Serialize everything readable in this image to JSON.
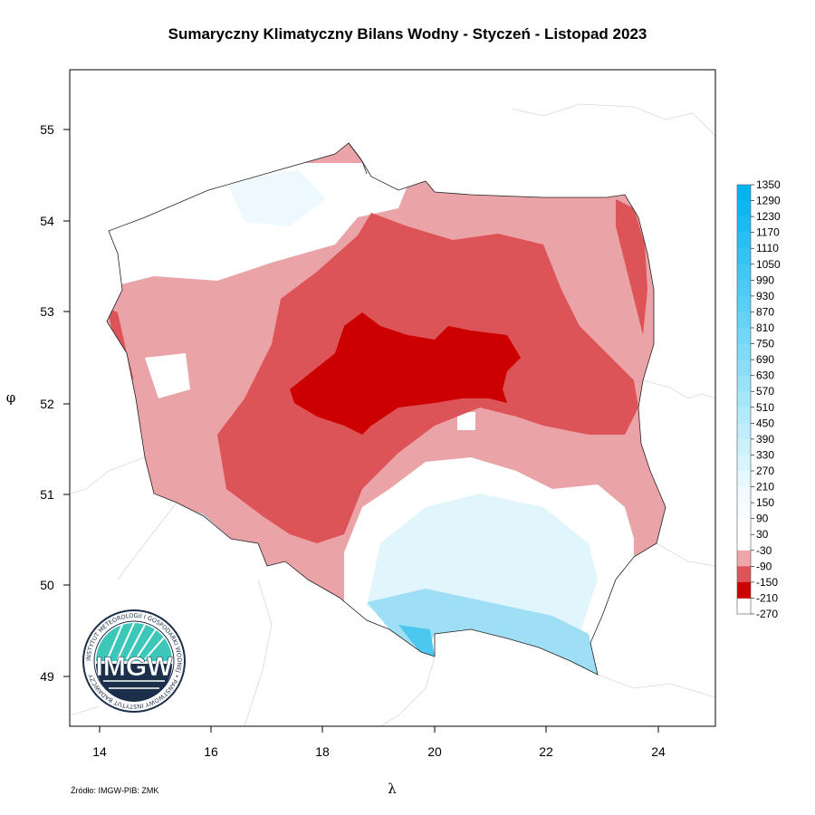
{
  "title": "Sumaryczny Klimatyczny Bilans Wodny - Styczeń - Listopad 2023",
  "source": "Źródło: IMGW-PIB: ZMK",
  "x_axis": {
    "label": "λ",
    "ticks": [
      "14",
      "16",
      "18",
      "20",
      "22",
      "24"
    ]
  },
  "y_axis": {
    "label": "φ",
    "ticks": [
      "55",
      "54",
      "53",
      "52",
      "51",
      "50",
      "49"
    ]
  },
  "legend": {
    "labels": [
      "1350",
      "1290",
      "1230",
      "1170",
      "1110",
      "1050",
      "990",
      "930",
      "870",
      "810",
      "750",
      "690",
      "630",
      "570",
      "510",
      "450",
      "390",
      "330",
      "270",
      "210",
      "150",
      "90",
      "30",
      "-30",
      "-90",
      "-150",
      "-210",
      "-270"
    ],
    "colors": [
      "#00b4f0",
      "#0cb8f1",
      "#19bcf2",
      "#26c0f3",
      "#33c4f3",
      "#40c8f4",
      "#4ccbf5",
      "#59cff5",
      "#66d3f6",
      "#73d7f7",
      "#80dbf7",
      "#8cdef8",
      "#99e2f9",
      "#a6e6f9",
      "#b3eafa",
      "#bfedfb",
      "#cbf1fb",
      "#d8f4fc",
      "#e5f8fd",
      "#f1fbfe",
      "#f8fdff",
      "#ffffff",
      "#ffffff",
      "#efa6a9",
      "#dc5458",
      "#cc0000"
    ]
  },
  "logo": {
    "text": "IMGW",
    "ring_text": "INSTYTUT METEOROLOGII I GOSPODARKI WODNEJ • PAŃSTWOWY INSTYTUT BADAWCZY"
  },
  "colors": {
    "deficit_light": "#eaa3a6",
    "deficit_medium": "#dc5458",
    "deficit_strong": "#cc0000",
    "surplus_light": "#cceefa",
    "surplus_strong": "#4cc7f0"
  }
}
